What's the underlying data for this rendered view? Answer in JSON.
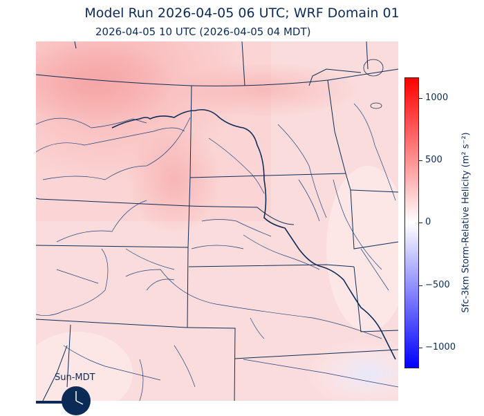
{
  "header": {
    "title": "Model Run 2026-04-05 06 UTC; WRF Domain 01",
    "valid_time": "2026-04-05 10 UTC  (2026-04-05 04 MDT)"
  },
  "colorbar": {
    "label": "Sfc-3km Storm-Relative Helicity (m² s⁻²)",
    "ticks": [
      "1000",
      "500",
      "0",
      "−500",
      "−1000"
    ],
    "range": [
      -1160,
      1160
    ],
    "colors": {
      "max": "#ff0000",
      "mid": "#ffffff",
      "min": "#0000ff"
    }
  },
  "clock": {
    "label": "Sun-MDT"
  },
  "colors": {
    "boundaries": "#0b2a55",
    "text": "#0b2a55"
  }
}
